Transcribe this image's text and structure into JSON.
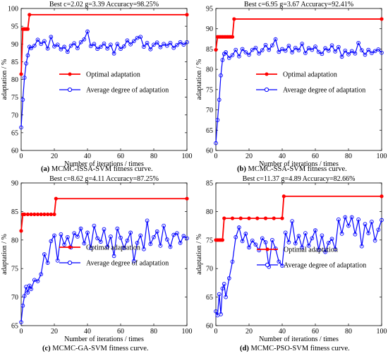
{
  "chart_data": [
    {
      "type": "line",
      "title": "Best c=2.02 g=3.39 Accuracy=98.25%",
      "caption_label": "(a)",
      "caption_text": "MCMC-ISSA-SVM fitness curve.",
      "xlabel": "Number of iterations / times",
      "ylabel": "adaptation / %",
      "xlim": [
        0,
        100
      ],
      "ylim": [
        60,
        100
      ],
      "xticks": [
        0,
        20,
        40,
        60,
        80,
        100
      ],
      "yticks": [
        60,
        65,
        70,
        75,
        80,
        85,
        90,
        95,
        100
      ],
      "legend": "center",
      "grid": false,
      "series": [
        {
          "name": "Optimal adaptation",
          "color": "#ff0000",
          "marker": "filled-circle",
          "x": [
            0,
            1,
            2,
            3,
            4,
            5,
            100
          ],
          "y": [
            81.5,
            94.2,
            94.2,
            94.2,
            94.2,
            98.25,
            98.25
          ]
        },
        {
          "name": "Average degree of adaptation",
          "color": "#0000ff",
          "marker": "open-circle",
          "x": [
            0,
            1,
            2,
            3,
            4,
            5,
            6,
            8,
            10,
            12,
            14,
            16,
            18,
            20,
            22,
            24,
            26,
            28,
            30,
            32,
            34,
            36,
            38,
            40,
            42,
            44,
            46,
            48,
            50,
            52,
            54,
            56,
            58,
            60,
            62,
            64,
            66,
            68,
            70,
            72,
            74,
            76,
            78,
            80,
            82,
            84,
            86,
            88,
            90,
            92,
            94,
            96,
            98,
            100
          ],
          "y": [
            66.5,
            74.3,
            80.5,
            84.5,
            86.8,
            89.2,
            88.8,
            89.5,
            91.2,
            90.0,
            90.8,
            88.7,
            92.0,
            89.3,
            89.8,
            88.5,
            89.2,
            87.8,
            89.5,
            90.2,
            88.8,
            90.5,
            91.3,
            93.5,
            89.4,
            90.0,
            88.6,
            89.2,
            90.1,
            88.7,
            89.8,
            87.3,
            90.0,
            88.6,
            89.3,
            91.0,
            89.9,
            90.8,
            91.7,
            92.0,
            89.2,
            90.3,
            88.5,
            89.8,
            90.4,
            89.1,
            90.0,
            89.5,
            90.3,
            88.9,
            89.7,
            90.5,
            89.8,
            90.5
          ]
        }
      ]
    },
    {
      "type": "line",
      "title": "Best c=6.95 g=3.67 Accuracy=92.41%",
      "caption_label": "(b)",
      "caption_text": "MCMC-SSA-SVM fitness curve.",
      "xlabel": "Number of iterations / times",
      "ylabel": "adaptation / %",
      "xlim": [
        0,
        100
      ],
      "ylim": [
        60,
        95
      ],
      "xticks": [
        0,
        20,
        40,
        60,
        80,
        100
      ],
      "yticks": [
        60,
        65,
        70,
        75,
        80,
        85,
        90,
        95
      ],
      "legend": "center",
      "grid": false,
      "series": [
        {
          "name": "Optimal adaptation",
          "color": "#ff0000",
          "marker": "filled-circle",
          "x": [
            0,
            1,
            2,
            3,
            4,
            5,
            6,
            7,
            8,
            9,
            10,
            11,
            100
          ],
          "y": [
            84.8,
            88.0,
            88.0,
            88.0,
            88.0,
            88.0,
            88.0,
            88.0,
            88.0,
            88.0,
            88.0,
            92.4,
            92.4
          ]
        },
        {
          "name": "Average degree of adaptation",
          "color": "#0000ff",
          "marker": "open-circle",
          "x": [
            0,
            1,
            2,
            3,
            4,
            5,
            6,
            8,
            10,
            12,
            14,
            16,
            18,
            20,
            22,
            24,
            26,
            28,
            30,
            32,
            34,
            36,
            38,
            40,
            42,
            44,
            46,
            48,
            50,
            52,
            54,
            56,
            58,
            60,
            62,
            64,
            66,
            68,
            70,
            72,
            74,
            76,
            78,
            80,
            82,
            84,
            86,
            88,
            90,
            92,
            94,
            96,
            98,
            100
          ],
          "y": [
            61.8,
            67.5,
            72.5,
            78.5,
            82.3,
            83.8,
            84.2,
            82.8,
            83.5,
            84.8,
            83.2,
            85.0,
            84.2,
            83.6,
            84.8,
            85.3,
            83.9,
            84.7,
            86.0,
            84.8,
            85.9,
            87.4,
            84.3,
            85.0,
            84.6,
            85.8,
            84.2,
            85.3,
            84.7,
            86.3,
            84.0,
            85.2,
            84.8,
            85.6,
            84.3,
            83.8,
            85.2,
            84.6,
            85.9,
            84.4,
            85.5,
            83.1,
            84.6,
            83.7,
            84.5,
            83.9,
            86.5,
            84.7,
            83.6,
            84.8,
            84.0,
            84.5,
            84.9,
            84.1
          ]
        }
      ]
    },
    {
      "type": "line",
      "title": "Best c=8.62 g=4.11 Accuracy=87.25%",
      "caption_label": "(c)",
      "caption_text": "MCMC-GA-SVM fitness curve.",
      "xlabel": "Number of iterations / times",
      "ylabel": "adaptation / %",
      "xlim": [
        0,
        100
      ],
      "ylim": [
        65,
        90
      ],
      "xticks": [
        0,
        20,
        40,
        60,
        80,
        100
      ],
      "yticks": [
        65,
        70,
        75,
        80,
        85,
        90
      ],
      "legend": "center",
      "grid": false,
      "series": [
        {
          "name": "Optimal adaptation",
          "color": "#ff0000",
          "marker": "filled-circle",
          "x": [
            0,
            1,
            2,
            4,
            6,
            8,
            10,
            12,
            14,
            16,
            18,
            20,
            21,
            100
          ],
          "y": [
            81.6,
            84.5,
            84.5,
            84.5,
            84.5,
            84.5,
            84.5,
            84.5,
            84.5,
            84.5,
            84.5,
            84.5,
            87.25,
            87.25
          ]
        },
        {
          "name": "Average degree of adaptation",
          "color": "#0000ff",
          "marker": "open-circle",
          "x": [
            0,
            1,
            2,
            3,
            4,
            5,
            6,
            8,
            10,
            12,
            14,
            16,
            18,
            20,
            22,
            24,
            26,
            28,
            30,
            32,
            34,
            36,
            38,
            40,
            42,
            44,
            46,
            48,
            50,
            52,
            54,
            56,
            58,
            60,
            62,
            64,
            66,
            68,
            70,
            72,
            74,
            76,
            78,
            80,
            82,
            84,
            86,
            88,
            90,
            92,
            94,
            96,
            98,
            100
          ],
          "y": [
            65.6,
            68.5,
            70.2,
            71.8,
            70.8,
            72.0,
            71.4,
            73.0,
            72.8,
            74.0,
            77.5,
            76.0,
            79.8,
            80.8,
            76.4,
            81.0,
            79.2,
            80.5,
            78.7,
            81.2,
            80.6,
            82.0,
            79.4,
            81.3,
            78.6,
            82.5,
            80.3,
            79.7,
            81.9,
            78.8,
            80.6,
            77.2,
            82.0,
            80.4,
            78.6,
            79.9,
            81.3,
            76.3,
            79.5,
            80.8,
            78.4,
            83.4,
            79.3,
            80.5,
            81.5,
            79.0,
            82.5,
            80.1,
            78.8,
            80.9,
            81.2,
            79.5,
            80.7,
            80.3
          ]
        }
      ]
    },
    {
      "type": "line",
      "title": "Best c=11.37 g=4.89 Accuracy=82.66%",
      "caption_label": "(d)",
      "caption_text": "MCMC-PSO-SVM fitness curve.",
      "xlabel": "Number of iterations / times",
      "ylabel": "adaptation / %",
      "xlim": [
        0,
        100
      ],
      "ylim": [
        60,
        85
      ],
      "xticks": [
        0,
        20,
        40,
        60,
        80,
        100
      ],
      "yticks": [
        60,
        65,
        70,
        75,
        80,
        85
      ],
      "legend": "center",
      "grid": false,
      "series": [
        {
          "name": "Optimal adaptation",
          "color": "#ff0000",
          "marker": "filled-circle",
          "x": [
            0,
            1,
            2,
            3,
            4,
            5,
            10,
            15,
            20,
            25,
            30,
            35,
            40,
            41,
            100
          ],
          "y": [
            75.0,
            75.0,
            75.0,
            75.0,
            75.0,
            78.8,
            78.8,
            78.8,
            78.8,
            78.8,
            78.8,
            78.8,
            78.8,
            82.66,
            82.66
          ]
        },
        {
          "name": "Average degree of adaptation",
          "color": "#0000ff",
          "marker": "open-circle",
          "x": [
            0,
            1,
            2,
            3,
            4,
            5,
            6,
            8,
            10,
            12,
            14,
            16,
            18,
            20,
            22,
            24,
            26,
            28,
            30,
            32,
            34,
            36,
            38,
            40,
            42,
            44,
            46,
            48,
            50,
            52,
            54,
            56,
            58,
            60,
            62,
            64,
            66,
            68,
            70,
            72,
            74,
            76,
            78,
            80,
            82,
            84,
            86,
            88,
            90,
            92,
            94,
            96,
            98,
            100
          ],
          "y": [
            62.5,
            61.8,
            65.5,
            62.0,
            66.5,
            67.3,
            65.0,
            68.3,
            71.2,
            75.5,
            77.2,
            74.8,
            76.1,
            73.7,
            74.9,
            74.2,
            73.2,
            75.3,
            74.6,
            70.3,
            75.0,
            73.5,
            71.2,
            70.5,
            76.3,
            74.6,
            78.3,
            74.4,
            75.7,
            73.7,
            76.2,
            74.0,
            75.3,
            76.7,
            73.3,
            75.8,
            72.9,
            74.5,
            75.2,
            73.4,
            78.6,
            76.1,
            79.0,
            77.5,
            79.0,
            76.0,
            78.6,
            73.9,
            77.8,
            76.2,
            78.2,
            74.9,
            76.8,
            78.5
          ]
        }
      ]
    }
  ]
}
